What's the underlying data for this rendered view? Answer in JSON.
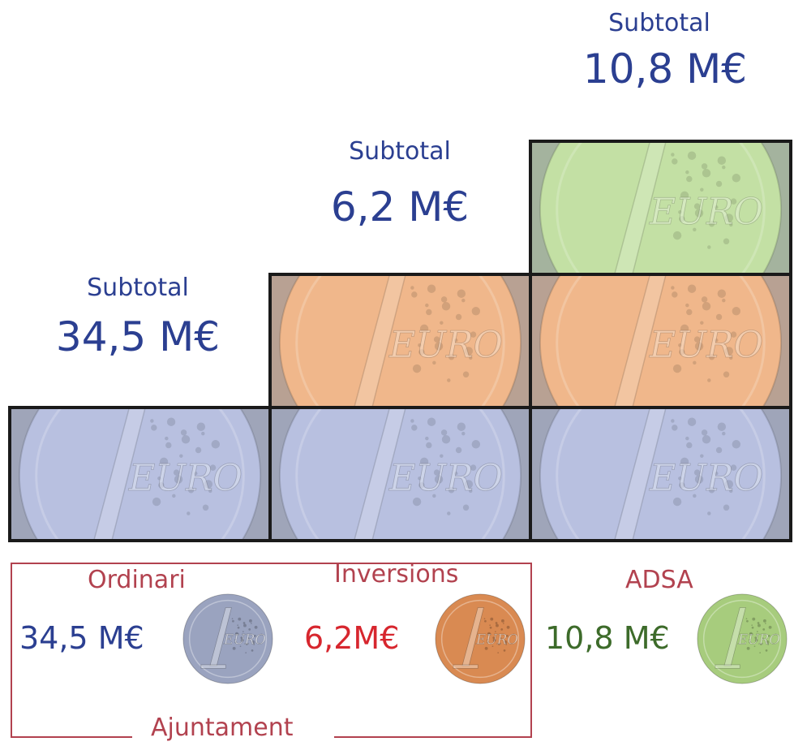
{
  "chart_data": {
    "type": "bar",
    "unit": "M€",
    "subtotals": [
      {
        "label": "Subtotal",
        "value_text": "34,5 M€",
        "value": 34.5,
        "height_units": 1
      },
      {
        "label": "Subtotal",
        "value_text": "6,2 M€",
        "value": 6.2,
        "height_units": 2
      },
      {
        "label": "Subtotal",
        "value_text": "10,8 M€",
        "value": 10.8,
        "height_units": 3
      }
    ],
    "categories": [
      {
        "name": "Ordinari",
        "amount_text": "34,5 M€",
        "value": 34.5,
        "color": "#2b3f91",
        "tile_color": "#b8c0e0",
        "coin_color": "#9aa3bf"
      },
      {
        "name": "Inversions",
        "amount_text": "6,2M€",
        "value": 6.2,
        "color": "#d7262e",
        "tile_color": "#f0b78b",
        "coin_color": "#d98a52"
      },
      {
        "name": "ADSA",
        "amount_text": "10,8 M€",
        "value": 10.8,
        "color": "#3d6b2a",
        "tile_color": "#c4e0a5",
        "coin_color": "#a7cc7d"
      }
    ],
    "group_label": "Ajuntament",
    "coin_text": "EURO"
  }
}
